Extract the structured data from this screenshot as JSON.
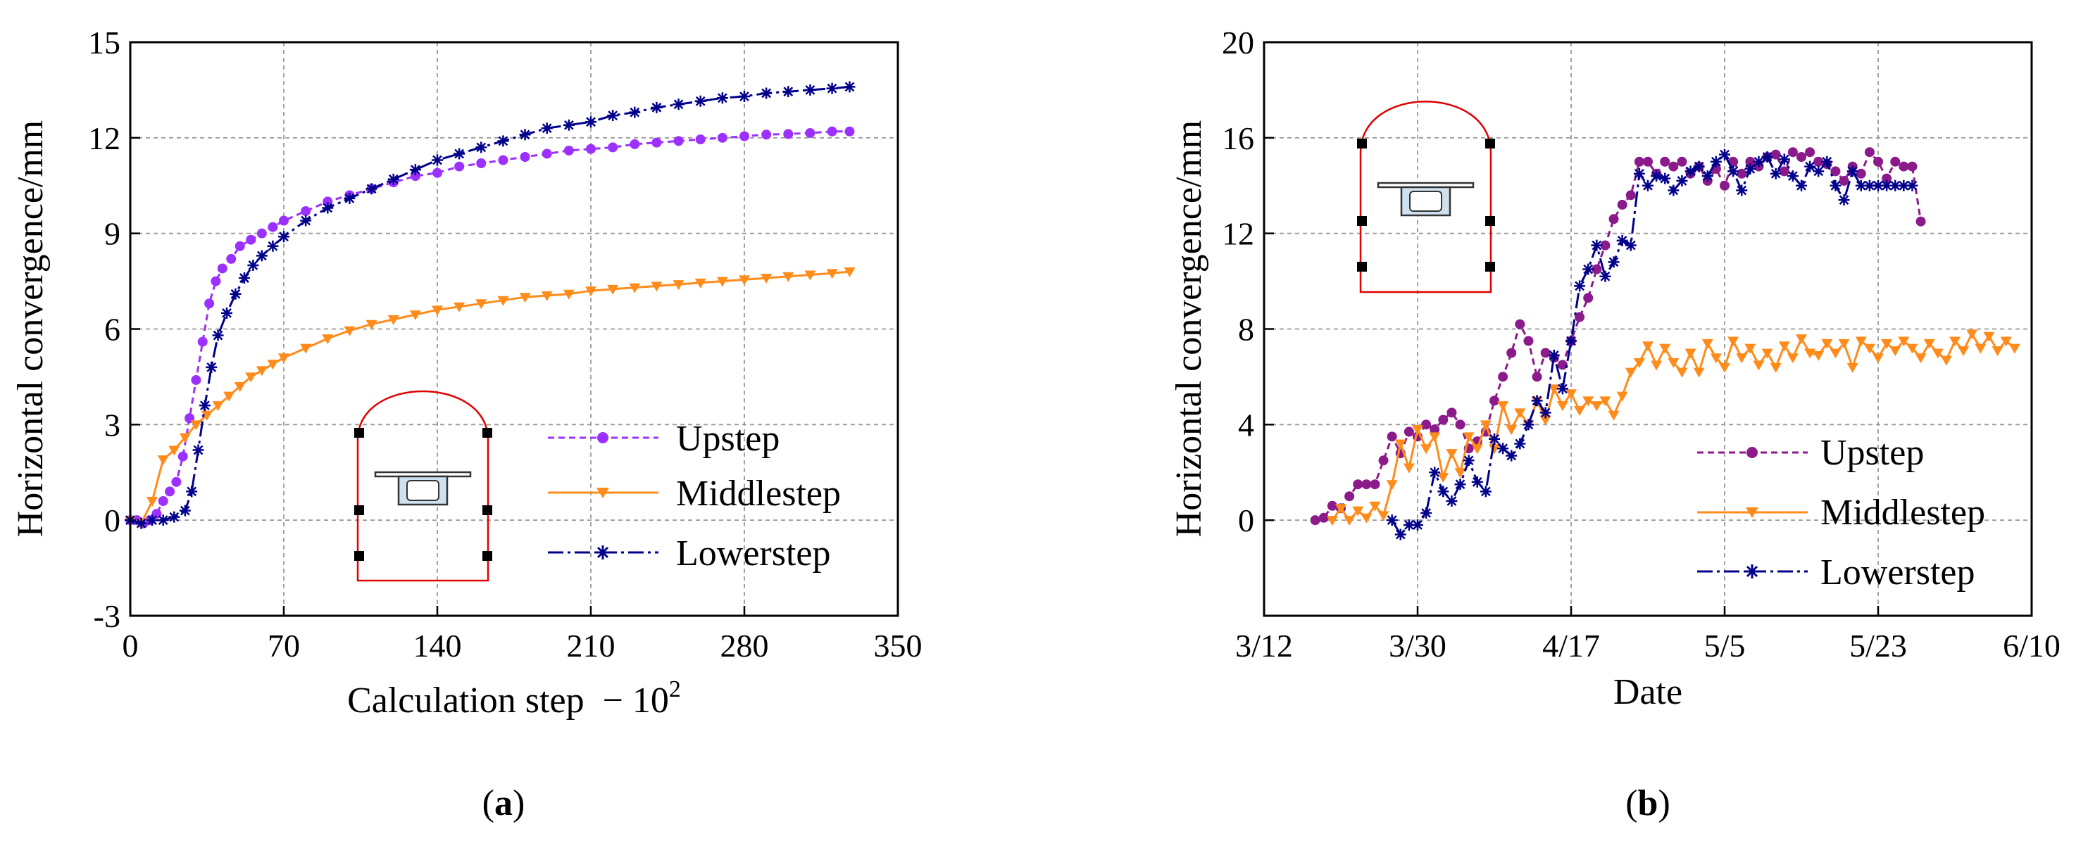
{
  "colors": {
    "upstep_a": "#9b30ff",
    "upstep_b": "#8b1a8b",
    "middlestep": "#ff8c1a",
    "lowerstep": "#00008b",
    "tunnel_outline": "#e00000",
    "beam_fill": "#cfe0ee",
    "grid": "#9a9a9a"
  },
  "chart_data": [
    {
      "id": "a",
      "type": "line",
      "panel_label": {
        "open": "(",
        "letter": "a",
        "close": ")"
      },
      "xlabel": "Calculation step",
      "xlabel_suffix": "− 10",
      "xlabel_exp": "2",
      "ylabel": "Horizontal convergence/mm",
      "xlim": [
        0,
        350
      ],
      "ylim": [
        -3,
        15
      ],
      "xticks": [
        0,
        70,
        140,
        210,
        280,
        350
      ],
      "xtick_labels": [
        "0",
        "70",
        "140",
        "210",
        "280",
        "350"
      ],
      "yticks": [
        -3,
        0,
        3,
        6,
        9,
        12,
        15
      ],
      "ytick_labels": [
        "-3",
        "0",
        "3",
        "6",
        "9",
        "12",
        "15"
      ],
      "grid": true,
      "legend_position": "lower-right",
      "series": [
        {
          "name": "Upstep",
          "color_key": "upstep_a",
          "marker": "circle",
          "dash": "dashed",
          "x": [
            0,
            3,
            6,
            9,
            12,
            15,
            18,
            21,
            24,
            27,
            30,
            33,
            36,
            39,
            42,
            46,
            50,
            55,
            60,
            65,
            70,
            80,
            90,
            100,
            110,
            120,
            130,
            140,
            150,
            160,
            170,
            180,
            190,
            200,
            210,
            220,
            230,
            240,
            250,
            260,
            270,
            280,
            290,
            300,
            310,
            320,
            328
          ],
          "y": [
            0,
            0,
            -0.1,
            0,
            0.2,
            0.6,
            0.9,
            1.2,
            2.0,
            3.2,
            4.4,
            5.6,
            6.8,
            7.5,
            7.9,
            8.2,
            8.6,
            8.8,
            9.0,
            9.2,
            9.4,
            9.7,
            10.0,
            10.2,
            10.4,
            10.6,
            10.8,
            10.9,
            11.1,
            11.2,
            11.3,
            11.4,
            11.5,
            11.6,
            11.65,
            11.7,
            11.8,
            11.85,
            11.9,
            11.95,
            12.0,
            12.05,
            12.1,
            12.12,
            12.15,
            12.2,
            12.2
          ]
        },
        {
          "name": "Middlestep",
          "color_key": "middlestep",
          "marker": "triangle-down",
          "dash": "solid",
          "x": [
            0,
            5,
            10,
            15,
            20,
            25,
            30,
            35,
            40,
            45,
            50,
            55,
            60,
            65,
            70,
            80,
            90,
            100,
            110,
            120,
            130,
            140,
            150,
            160,
            170,
            180,
            190,
            200,
            210,
            220,
            230,
            240,
            250,
            260,
            270,
            280,
            290,
            300,
            310,
            320,
            328
          ],
          "y": [
            0,
            -0.1,
            0.6,
            1.9,
            2.2,
            2.6,
            3.0,
            3.3,
            3.6,
            3.9,
            4.2,
            4.5,
            4.7,
            4.9,
            5.1,
            5.4,
            5.7,
            5.95,
            6.15,
            6.3,
            6.45,
            6.6,
            6.7,
            6.8,
            6.9,
            7.0,
            7.05,
            7.1,
            7.2,
            7.25,
            7.3,
            7.35,
            7.4,
            7.45,
            7.5,
            7.55,
            7.6,
            7.65,
            7.7,
            7.75,
            7.8
          ]
        },
        {
          "name": "Lowerstep",
          "color_key": "lowerstep",
          "marker": "asterisk",
          "dash": "dashdot",
          "x": [
            0,
            5,
            10,
            15,
            20,
            25,
            28,
            31,
            34,
            37,
            40,
            44,
            48,
            52,
            56,
            60,
            65,
            70,
            80,
            90,
            100,
            110,
            120,
            130,
            140,
            150,
            160,
            170,
            180,
            190,
            200,
            210,
            220,
            230,
            240,
            250,
            260,
            270,
            280,
            290,
            300,
            310,
            320,
            328
          ],
          "y": [
            0,
            -0.1,
            0,
            0,
            0.1,
            0.3,
            0.9,
            2.2,
            3.6,
            4.8,
            5.8,
            6.5,
            7.1,
            7.6,
            8.0,
            8.3,
            8.6,
            8.9,
            9.4,
            9.8,
            10.1,
            10.4,
            10.7,
            11.0,
            11.3,
            11.5,
            11.7,
            11.9,
            12.1,
            12.3,
            12.4,
            12.5,
            12.7,
            12.8,
            12.95,
            13.05,
            13.15,
            13.25,
            13.3,
            13.4,
            13.45,
            13.5,
            13.55,
            13.6
          ]
        }
      ]
    },
    {
      "id": "b",
      "type": "line",
      "panel_label": {
        "open": "(",
        "letter": "b",
        "close": ")"
      },
      "xlabel": "Date",
      "ylabel": "Horizontal convergence/mm",
      "xlim": [
        0,
        90
      ],
      "ylim": [
        -4,
        20
      ],
      "xticks": [
        0,
        18,
        36,
        54,
        72,
        90
      ],
      "xtick_labels": [
        "3/12",
        "3/30",
        "4/17",
        "5/5",
        "5/23",
        "6/10"
      ],
      "yticks": [
        0,
        4,
        8,
        12,
        16,
        20
      ],
      "ytick_labels": [
        "0",
        "4",
        "8",
        "12",
        "16",
        "20"
      ],
      "grid": true,
      "legend_position": "lower-right",
      "series": [
        {
          "name": "Upstep",
          "color_key": "upstep_b",
          "marker": "circle",
          "dash": "dashed",
          "x": [
            6,
            7,
            8,
            9,
            10,
            11,
            12,
            13,
            14,
            15,
            16,
            17,
            18,
            19,
            20,
            21,
            22,
            23,
            24,
            25,
            26,
            27,
            28,
            29,
            30,
            31,
            32,
            33,
            34,
            35,
            36,
            37,
            38,
            39,
            40,
            41,
            42,
            43,
            44,
            45,
            46,
            47,
            48,
            49,
            50,
            51,
            52,
            53,
            54,
            55,
            56,
            57,
            58,
            59,
            60,
            61,
            62,
            63,
            64,
            65,
            66,
            67,
            68,
            69,
            70,
            71,
            72,
            73,
            74,
            75,
            76,
            77
          ],
          "y": [
            0,
            0.1,
            0.6,
            0.5,
            1.0,
            1.5,
            1.5,
            1.5,
            2.5,
            3.5,
            2.8,
            3.7,
            3.5,
            4.0,
            3.8,
            4.2,
            4.5,
            4.0,
            3.0,
            3.3,
            3.7,
            5.0,
            6.0,
            7.0,
            8.2,
            7.5,
            6.0,
            7.0,
            6.8,
            6.5,
            7.5,
            8.5,
            9.3,
            10.5,
            11.5,
            12.6,
            13.2,
            13.6,
            15.0,
            15.0,
            14.5,
            15.0,
            14.8,
            15.0,
            14.5,
            14.8,
            14.2,
            14.7,
            14.0,
            15.0,
            14.5,
            15.0,
            14.8,
            15.2,
            15.3,
            14.6,
            15.4,
            15.2,
            15.4,
            15.0,
            14.9,
            14.6,
            14.2,
            14.8,
            14.5,
            15.4,
            15.0,
            14.3,
            15.0,
            14.8,
            14.8,
            12.5
          ]
        },
        {
          "name": "Middlestep",
          "color_key": "middlestep",
          "marker": "triangle-down",
          "dash": "solid",
          "x": [
            8,
            9,
            10,
            11,
            12,
            13,
            14,
            15,
            16,
            17,
            18,
            19,
            20,
            21,
            22,
            23,
            24,
            25,
            26,
            27,
            28,
            29,
            30,
            31,
            32,
            33,
            34,
            35,
            36,
            37,
            38,
            39,
            40,
            41,
            42,
            43,
            44,
            45,
            46,
            47,
            48,
            49,
            50,
            51,
            52,
            53,
            54,
            55,
            56,
            57,
            58,
            59,
            60,
            61,
            62,
            63,
            64,
            65,
            66,
            67,
            68,
            69,
            70,
            71,
            72,
            73,
            74,
            75,
            76,
            77,
            78,
            79,
            80,
            81,
            82,
            83,
            84,
            85,
            86,
            87,
            88
          ],
          "y": [
            0,
            0.5,
            0,
            0.4,
            0.1,
            0.6,
            0.2,
            1.5,
            3.2,
            2.2,
            3.8,
            3.0,
            3.5,
            1.8,
            2.8,
            2.0,
            3.5,
            3.0,
            4.0,
            3.0,
            4.8,
            3.8,
            4.5,
            4.0,
            5.0,
            4.2,
            5.5,
            4.8,
            5.3,
            4.6,
            5.0,
            4.8,
            5.0,
            4.4,
            5.2,
            6.2,
            6.6,
            7.3,
            6.5,
            7.2,
            6.6,
            6.2,
            7.0,
            6.2,
            7.4,
            6.8,
            6.4,
            7.5,
            6.8,
            7.2,
            6.5,
            7.0,
            6.4,
            7.3,
            6.8,
            7.6,
            7.0,
            6.9,
            7.4,
            7.0,
            7.4,
            6.4,
            7.5,
            7.2,
            6.8,
            7.4,
            7.1,
            7.5,
            7.2,
            6.8,
            7.4,
            7.0,
            6.7,
            7.5,
            7.1,
            7.8,
            7.2,
            7.7,
            7.1,
            7.5,
            7.2
          ]
        },
        {
          "name": "Lowerstep",
          "color_key": "lowerstep",
          "marker": "asterisk",
          "dash": "dashdot",
          "x": [
            15,
            16,
            17,
            18,
            19,
            20,
            21,
            22,
            23,
            24,
            25,
            26,
            27,
            28,
            29,
            30,
            31,
            32,
            33,
            34,
            35,
            36,
            37,
            38,
            39,
            40,
            41,
            42,
            43,
            44,
            45,
            46,
            47,
            48,
            49,
            50,
            51,
            52,
            53,
            54,
            55,
            56,
            57,
            58,
            59,
            60,
            61,
            62,
            63,
            64,
            65,
            66,
            67,
            68,
            69,
            70,
            71,
            72,
            73,
            74,
            75,
            76
          ],
          "y": [
            0,
            -0.6,
            -0.2,
            -0.2,
            0.3,
            2.0,
            1.2,
            0.8,
            1.5,
            2.5,
            1.6,
            1.2,
            3.4,
            3.0,
            2.7,
            3.2,
            4.0,
            5.0,
            4.5,
            6.9,
            5.5,
            7.5,
            9.8,
            10.5,
            11.5,
            10.2,
            10.8,
            11.7,
            11.5,
            14.5,
            14.0,
            14.4,
            14.3,
            13.8,
            14.2,
            14.6,
            14.8,
            14.4,
            15.0,
            15.3,
            14.6,
            13.8,
            14.7,
            15.0,
            15.2,
            14.5,
            15.1,
            14.4,
            14.0,
            14.8,
            14.6,
            15.0,
            14.0,
            13.4,
            14.6,
            14.0,
            14.0,
            14.0,
            14.0,
            14.0,
            14.0,
            14.0
          ]
        }
      ]
    }
  ]
}
